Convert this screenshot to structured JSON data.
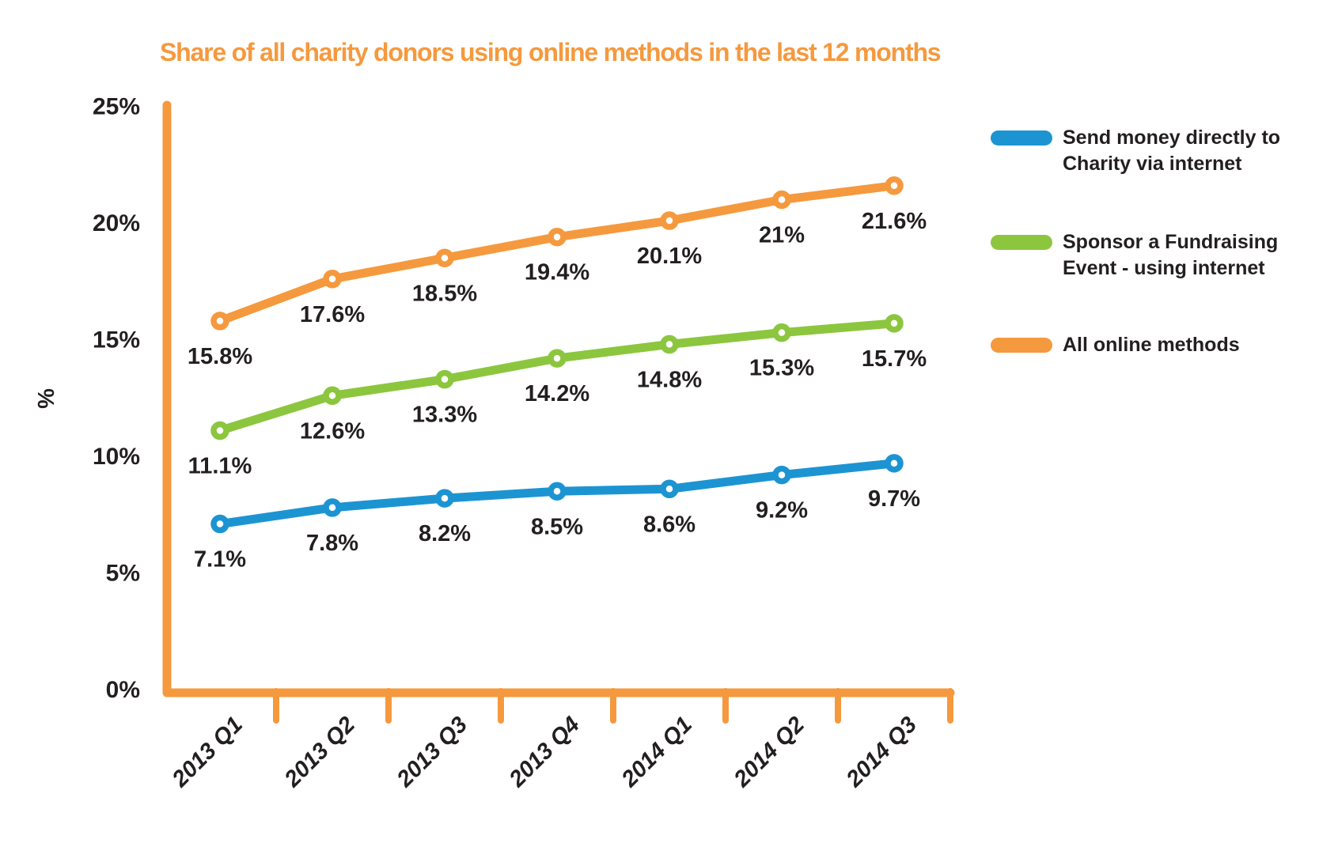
{
  "title": {
    "text": "Share of all charity donors using online methods in the last 12 months",
    "color": "#F5993E"
  },
  "chart_data": {
    "type": "line",
    "categories": [
      "2013 Q1",
      "2013 Q2",
      "2013 Q3",
      "2013 Q4",
      "2014 Q1",
      "2014 Q2",
      "2014 Q3"
    ],
    "series": [
      {
        "name": "Send money directly to Charity via internet",
        "color": "#1D94D2",
        "values": [
          7.1,
          7.8,
          8.2,
          8.5,
          8.6,
          9.2,
          9.7
        ],
        "labels": [
          "7.1%",
          "7.8%",
          "8.2%",
          "8.5%",
          "8.6%",
          "9.2%",
          "9.7%"
        ]
      },
      {
        "name": "Sponsor a Fundraising Event - using internet",
        "color": "#8CC63F",
        "values": [
          11.1,
          12.6,
          13.3,
          14.2,
          14.8,
          15.3,
          15.7
        ],
        "labels": [
          "11.1%",
          "12.6%",
          "13.3%",
          "14.2%",
          "14.8%",
          "15.3%",
          "15.7%"
        ]
      },
      {
        "name": "All online methods",
        "color": "#F5993E",
        "values": [
          15.8,
          17.6,
          18.5,
          19.4,
          20.1,
          21,
          21.6
        ],
        "labels": [
          "15.8%",
          "17.6%",
          "18.5%",
          "19.4%",
          "20.1%",
          "21%",
          "21.6%"
        ]
      }
    ],
    "xlabel": "",
    "ylabel": "%",
    "ylim": [
      0,
      25
    ],
    "ytick_values": [
      0,
      5,
      10,
      15,
      20,
      25
    ],
    "ytick_labels": [
      "0%",
      "5%",
      "10%",
      "15%",
      "20%",
      "25%"
    ],
    "axis_color": "#F5993E",
    "text_color": "#231F20",
    "grid": false,
    "legend_position": "right",
    "marker": "open-circle"
  }
}
